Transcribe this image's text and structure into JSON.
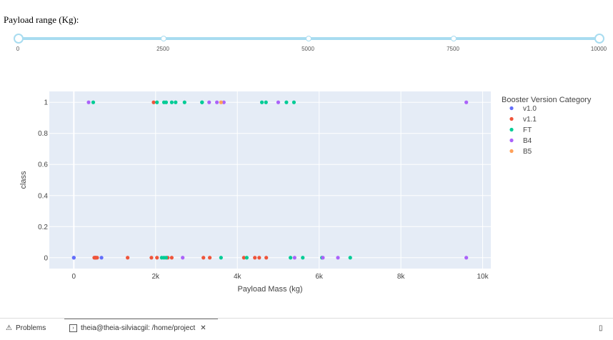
{
  "slider": {
    "label": "Payload range (Kg):",
    "min": 0,
    "max": 10000,
    "marks": [
      "0",
      "2500",
      "5000",
      "7500",
      "10000"
    ],
    "selected": [
      0,
      10000
    ],
    "color": "#a8dcf0"
  },
  "chart_data": {
    "type": "scatter",
    "xlabel": "Payload Mass (kg)",
    "ylabel": "class",
    "xlim": [
      -600,
      10200
    ],
    "ylim": [
      -0.07,
      1.07
    ],
    "x_ticks": [
      0,
      2000,
      4000,
      6000,
      8000,
      10000
    ],
    "x_tick_labels": [
      "0",
      "2k",
      "4k",
      "6k",
      "8k",
      "10k"
    ],
    "y_ticks": [
      0,
      0.2,
      0.4,
      0.6,
      0.8,
      1
    ],
    "y_tick_labels": [
      "0",
      "0.2",
      "0.4",
      "0.6",
      "0.8",
      "1"
    ],
    "grid": true,
    "legend": {
      "title": "Booster Version Category",
      "position": "top-right"
    },
    "series": [
      {
        "name": "v1.0",
        "color": "#636efa",
        "x": [
          0,
          0,
          525,
          677
        ],
        "y": [
          0,
          0,
          0,
          0
        ]
      },
      {
        "name": "v1.1",
        "color": "#EF553B",
        "x": [
          500,
          525,
          540,
          570,
          1316,
          1898,
          1952,
          2034,
          2296,
          2395,
          3170,
          3325,
          4159,
          4428,
          4535,
          4707
        ],
        "y": [
          0,
          0,
          0,
          0,
          0,
          0,
          1,
          0,
          0,
          0,
          0,
          0,
          0,
          0,
          0,
          0
        ]
      },
      {
        "name": "FT",
        "color": "#00cc96",
        "x": [
          475,
          2034,
          2150,
          2205,
          2257,
          2395,
          2490,
          2708,
          3136,
          3600,
          4230,
          4600,
          4700,
          5200,
          5300,
          5384,
          5600,
          6070,
          6761,
          2205,
          3136,
          2257
        ],
        "y": [
          1,
          1,
          0,
          1,
          1,
          1,
          1,
          1,
          1,
          0,
          0,
          1,
          1,
          1,
          0,
          1,
          0,
          0,
          0,
          0,
          1,
          0
        ]
      },
      {
        "name": "B4",
        "color": "#ab63fa",
        "x": [
          362,
          2663,
          3310,
          3500,
          3669,
          5000,
          5400,
          6092,
          6460,
          9600,
          9600
        ],
        "y": [
          1,
          0,
          1,
          1,
          1,
          1,
          0,
          0,
          0,
          1,
          0
        ]
      },
      {
        "name": "B5",
        "color": "#FFA15A",
        "x": [
          3600
        ],
        "y": [
          1
        ]
      }
    ]
  },
  "status_bar": {
    "problems_label": "Problems",
    "terminal_label": "theia@theia-silviacgil: /home/project",
    "close_glyph": "✕",
    "terminal_glyph": "›",
    "problems_glyph": "⚠",
    "layout_glyph": "▯"
  }
}
